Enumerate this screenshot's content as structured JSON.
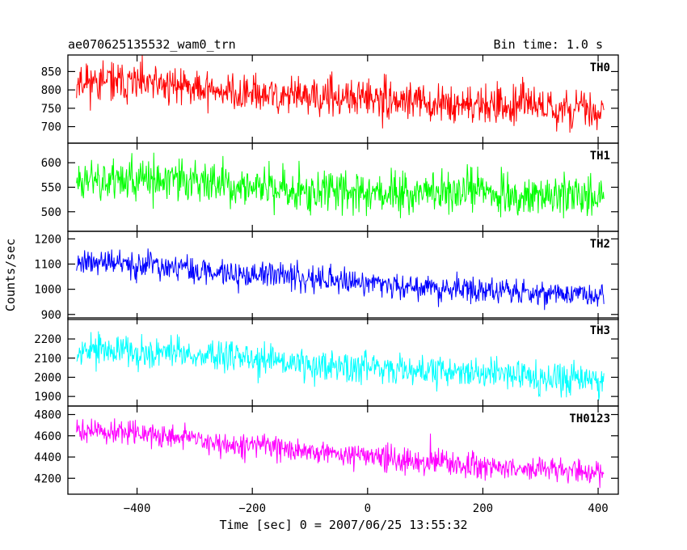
{
  "chart_data": {
    "type": "line",
    "title": "ae070625135532_wam0_trn",
    "subtitle": "Bin time: 1.0 s",
    "xlabel": "Time [sec] 0 = 2007/06/25 13:55:32",
    "ylabel": "Counts/sec",
    "xlim": [
      -520,
      435
    ],
    "x_start": -505,
    "x_end": 410,
    "x_ticks": [
      -400,
      -200,
      0,
      200,
      400
    ],
    "x_tick_labels": [
      "−400",
      "−200",
      "0",
      "200",
      "400"
    ],
    "panels": [
      {
        "name": "TH0",
        "color": "#ff0000",
        "ylim": [
          655,
          895
        ],
        "y_ticks": [
          700,
          750,
          800,
          850
        ],
        "y_tick_labels": [
          "700",
          "750",
          "800",
          "850"
        ],
        "trend": [
          [
            -505,
            825
          ],
          [
            -300,
            810
          ],
          [
            -200,
            785
          ],
          [
            0,
            775
          ],
          [
            200,
            760
          ],
          [
            410,
            745
          ]
        ],
        "noise": 28,
        "seed": 11
      },
      {
        "name": "TH1",
        "color": "#00ff00",
        "ylim": [
          460,
          640
        ],
        "y_ticks": [
          500,
          550,
          600
        ],
        "y_tick_labels": [
          "500",
          "550",
          "600"
        ],
        "trend": [
          [
            -505,
            570
          ],
          [
            -300,
            560
          ],
          [
            -100,
            540
          ],
          [
            0,
            545
          ],
          [
            200,
            540
          ],
          [
            410,
            528
          ]
        ],
        "noise": 24,
        "seed": 23
      },
      {
        "name": "TH2",
        "color": "#0000ff",
        "ylim": [
          880,
          1230
        ],
        "y_ticks": [
          900,
          1000,
          1100,
          1200
        ],
        "y_tick_labels": [
          "900",
          "1000",
          "1100",
          "1200"
        ],
        "trend": [
          [
            -505,
            1115
          ],
          [
            -300,
            1075
          ],
          [
            -100,
            1045
          ],
          [
            0,
            1025
          ],
          [
            200,
            995
          ],
          [
            410,
            975
          ]
        ],
        "noise": 28,
        "seed": 37
      },
      {
        "name": "TH3",
        "color": "#00ffff",
        "ylim": [
          1850,
          2310
        ],
        "y_ticks": [
          1900,
          2000,
          2100,
          2200
        ],
        "y_tick_labels": [
          "1900",
          "2000",
          "2100",
          "2200"
        ],
        "trend": [
          [
            -505,
            2150
          ],
          [
            -300,
            2120
          ],
          [
            -100,
            2070
          ],
          [
            0,
            2060
          ],
          [
            200,
            2020
          ],
          [
            410,
            1990
          ]
        ],
        "noise": 45,
        "seed": 53
      },
      {
        "name": "TH0123",
        "color": "#ff00ff",
        "ylim": [
          4050,
          4880
        ],
        "y_ticks": [
          4200,
          4400,
          4600,
          4800
        ],
        "y_tick_labels": [
          "4200",
          "4400",
          "4600",
          "4800"
        ],
        "trend": [
          [
            -505,
            4660
          ],
          [
            -300,
            4570
          ],
          [
            -100,
            4450
          ],
          [
            0,
            4400
          ],
          [
            200,
            4320
          ],
          [
            410,
            4250
          ]
        ],
        "noise": 60,
        "seed": 71
      }
    ]
  }
}
